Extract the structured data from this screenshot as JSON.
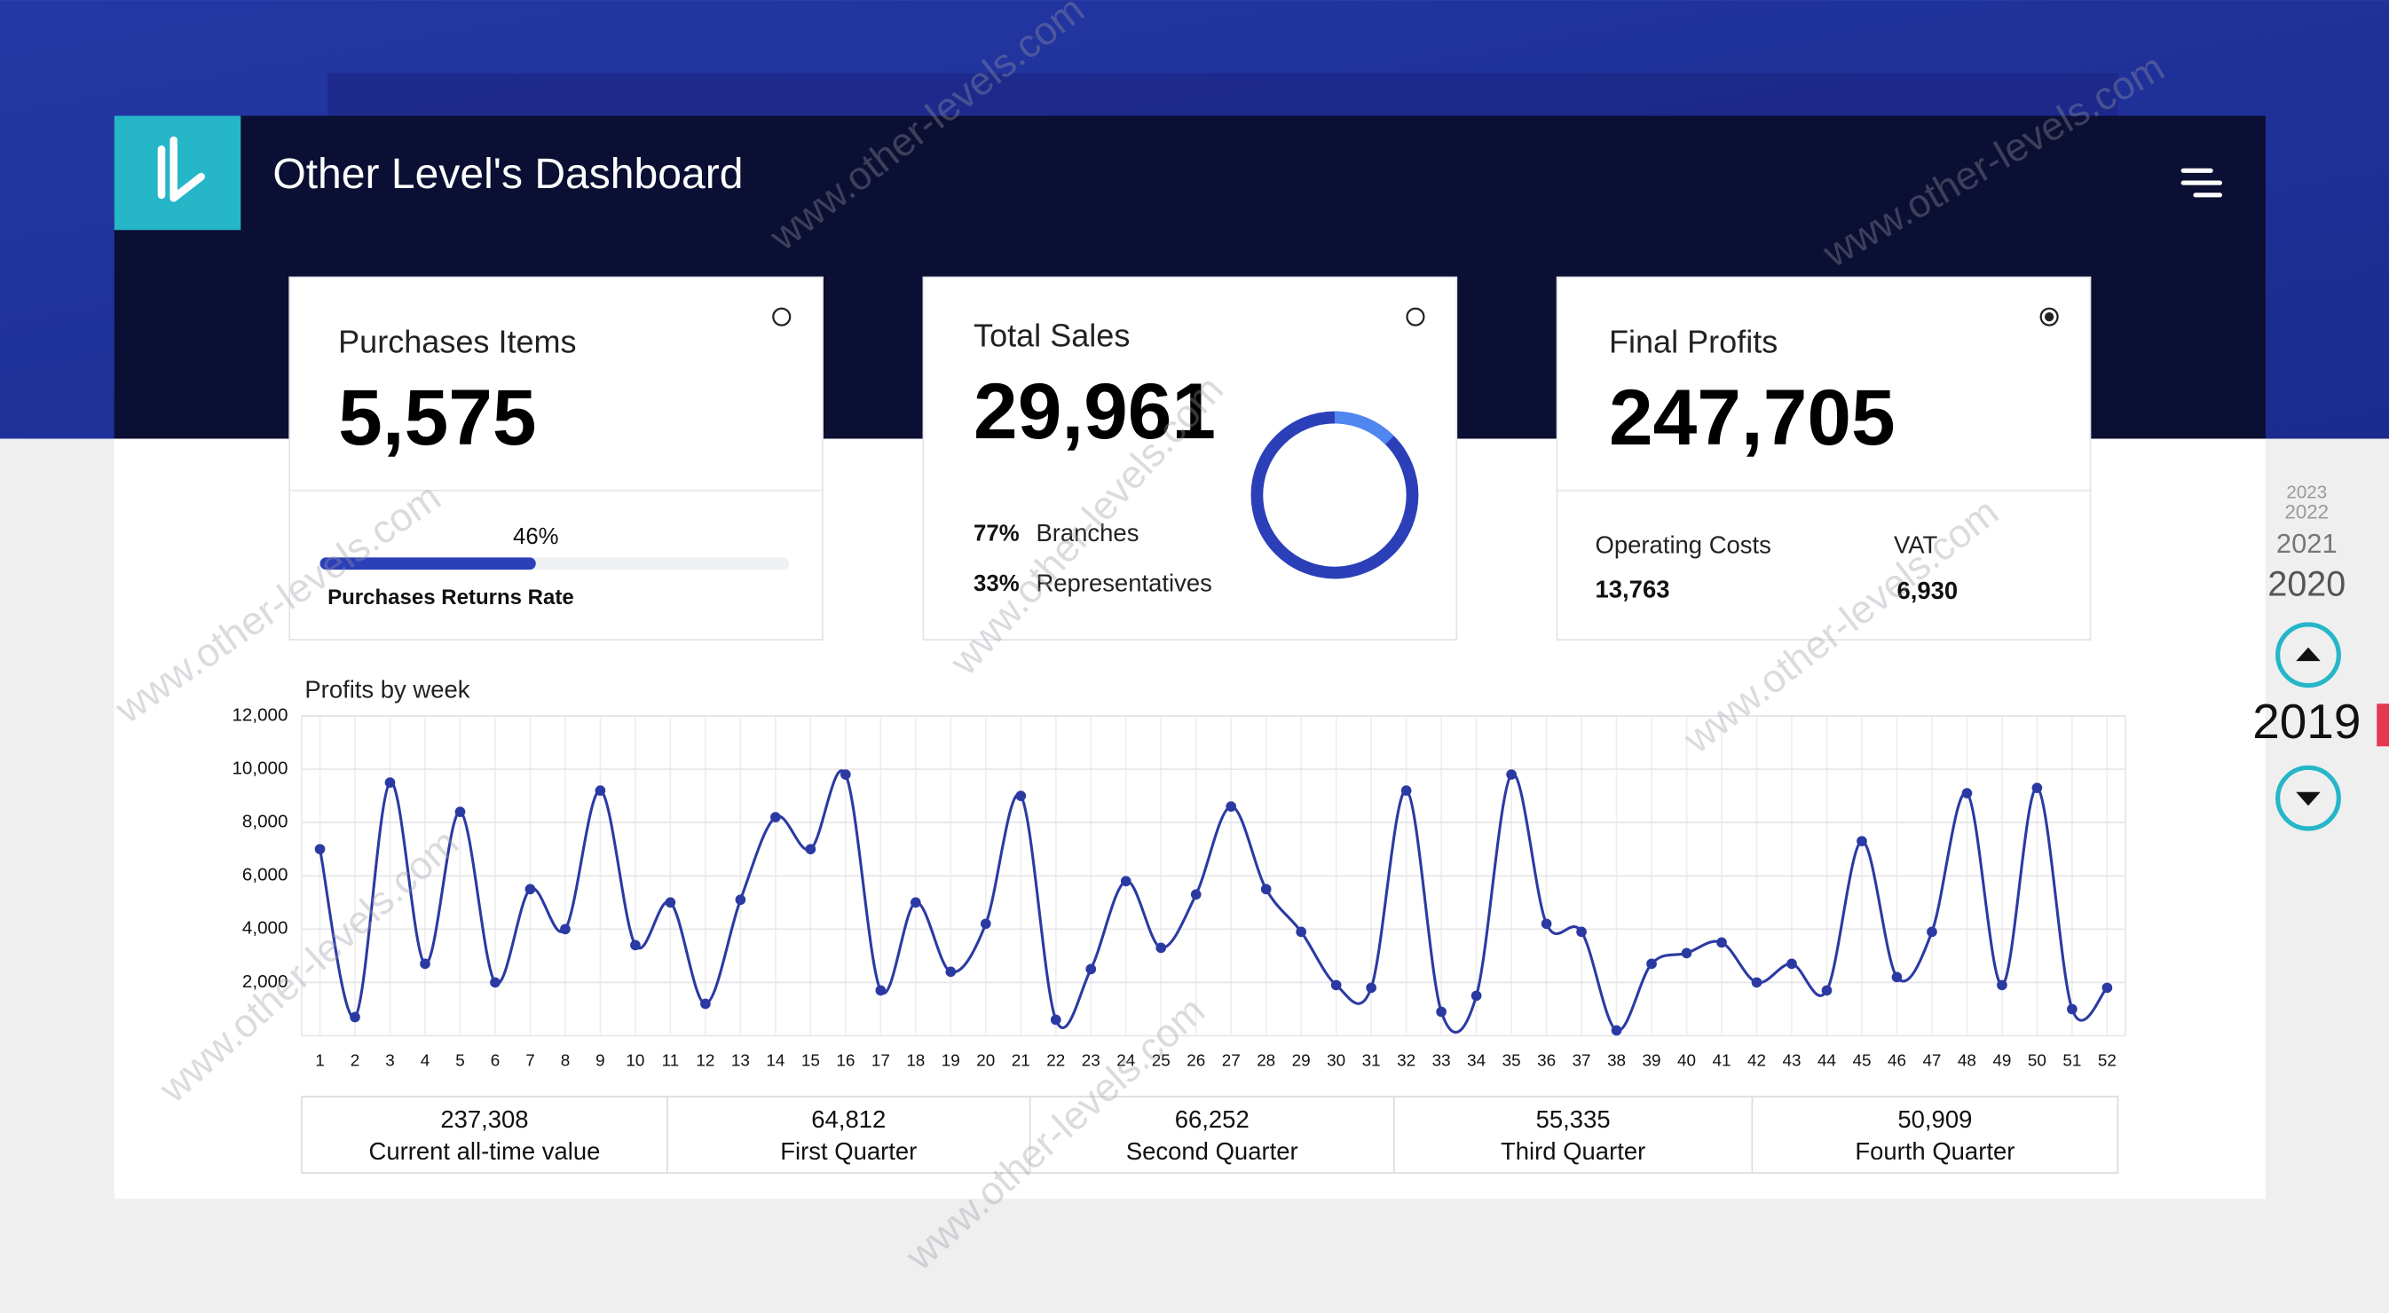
{
  "header": {
    "title": "Other Level's Dashboard"
  },
  "watermark": "www.other-levels.com",
  "cards": [
    {
      "title": "Purchases Items",
      "value": "5,575",
      "progress": {
        "value": 46,
        "label": "46%"
      },
      "caption": "Purchases Returns Rate"
    },
    {
      "title": "Total Sales",
      "value": "29,961",
      "rows": [
        {
          "share": "77%",
          "label": "Branches"
        },
        {
          "share": "33%",
          "label": "Representatives"
        }
      ]
    },
    {
      "title": "Final Profits",
      "value": "247,705",
      "items": [
        {
          "label": "Operating Costs",
          "value": "13,763"
        },
        {
          "label": "VAT",
          "value": "6,930"
        }
      ]
    }
  ],
  "chart_data": {
    "type": "line",
    "title": "Profits by week",
    "categories": [
      "1",
      "2",
      "3",
      "4",
      "5",
      "6",
      "7",
      "8",
      "9",
      "10",
      "11",
      "12",
      "13",
      "14",
      "15",
      "16",
      "17",
      "18",
      "19",
      "20",
      "21",
      "22",
      "23",
      "24",
      "25",
      "26",
      "27",
      "28",
      "29",
      "30",
      "31",
      "32",
      "33",
      "34",
      "35",
      "36",
      "37",
      "38",
      "39",
      "40",
      "41",
      "42",
      "43",
      "44",
      "45",
      "46",
      "47",
      "48",
      "49",
      "50",
      "51",
      "52"
    ],
    "values": [
      7000,
      700,
      9500,
      2700,
      8400,
      2000,
      5500,
      4000,
      9200,
      3400,
      5000,
      1200,
      5100,
      8200,
      7000,
      9800,
      1700,
      5000,
      2400,
      4200,
      9000,
      600,
      2500,
      5800,
      3300,
      5300,
      8600,
      5500,
      3900,
      1900,
      1800,
      9200,
      900,
      1500,
      9800,
      4200,
      3900,
      200,
      2700,
      3100,
      3500,
      2000,
      2700,
      1700,
      7300,
      2200,
      3900,
      9100,
      1900,
      9300,
      1000,
      1800
    ],
    "color": "#2b3aa3",
    "ylim": [
      0,
      12000
    ],
    "yticks": [
      {
        "value": 2000,
        "label": "2,000"
      },
      {
        "value": 4000,
        "label": "4,000"
      },
      {
        "value": 6000,
        "label": "6,000"
      },
      {
        "value": 8000,
        "label": "8,000"
      },
      {
        "value": 10000,
        "label": "10,000"
      },
      {
        "value": 12000,
        "label": "12,000"
      }
    ],
    "grid": true
  },
  "summary": [
    {
      "value": "237,308",
      "label": "Current all-time value"
    },
    {
      "value": "64,812",
      "label": "First Quarter"
    },
    {
      "value": "66,252",
      "label": "Second Quarter"
    },
    {
      "value": "55,335",
      "label": "Third Quarter"
    },
    {
      "value": "50,909",
      "label": "Fourth Quarter"
    }
  ],
  "years": [
    "2023",
    "2022",
    "2021",
    "2020",
    "2019"
  ]
}
